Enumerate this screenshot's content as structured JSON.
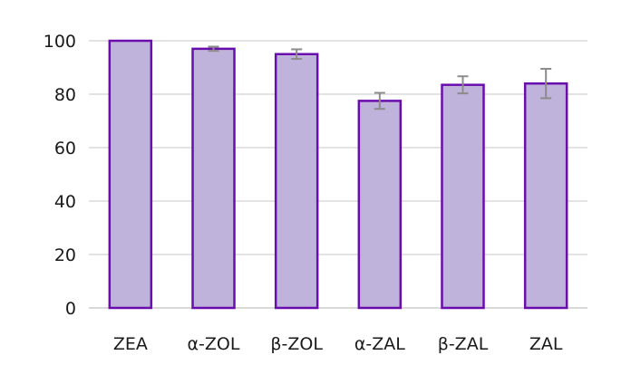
{
  "chart_data": {
    "type": "bar",
    "title": "",
    "xlabel": "",
    "ylabel": "",
    "categories": [
      "ZEA",
      "α-ZOL",
      "β-ZOL",
      "α-ZAL",
      "β-ZAL",
      "ZAL"
    ],
    "values": [
      100,
      97,
      95,
      77.5,
      83.5,
      84
    ],
    "error": [
      0,
      0.8,
      1.8,
      3,
      3.2,
      5.5
    ],
    "ylim": [
      0,
      100
    ],
    "yticks": [
      0,
      20,
      40,
      60,
      80,
      100
    ],
    "grid": true,
    "legend": "none",
    "colors": {
      "fill": "#bfb2db",
      "stroke": "#6a0dad",
      "error": "#8c8c8c"
    }
  }
}
